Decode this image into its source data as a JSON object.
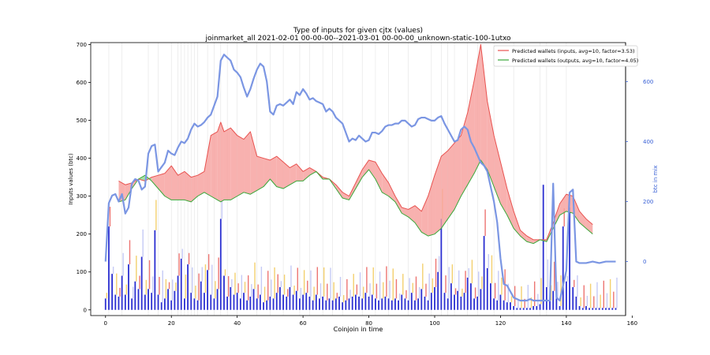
{
  "chart_data": {
    "type": "line",
    "title": "Type of inputs for given cjtx (values)",
    "subtitle": "joinmarket_all 2021-02-01 00-00-00--2021-03-01 00-00-00_unknown-static-100-1utxo",
    "xlabel": "Coinjoin in time",
    "ylabel": "Inputs values (btc)",
    "y2label": "btc in mix",
    "xlim": [
      -4.5,
      158
    ],
    "ylim": [
      -15,
      705
    ],
    "y2lim": [
      -180,
      730
    ],
    "xticks": [
      0,
      20,
      40,
      60,
      80,
      100,
      120,
      140,
      160
    ],
    "yticks": [
      0,
      100,
      200,
      300,
      400,
      500,
      600,
      700
    ],
    "y2ticks": [
      0,
      200,
      400,
      600
    ],
    "legend_position": "top-right",
    "legend": [
      {
        "label": "Predicted wallets (inputs, avg=10, factor=3.53)",
        "color": "#e8524f"
      },
      {
        "label": "Predicted wallets (outputs, avg=10, factor=4.05)",
        "color": "#3aa83a"
      }
    ],
    "series": [
      {
        "name": "Predicted wallets (inputs, avg=10, factor=3.53)",
        "color": "#e8524f",
        "x": [
          4,
          6,
          8,
          10,
          12,
          14,
          16,
          18,
          20,
          22,
          24,
          26,
          28,
          30,
          32,
          34,
          35,
          36,
          38,
          40,
          42,
          44,
          46,
          48,
          50,
          52,
          54,
          56,
          58,
          60,
          62,
          64,
          66,
          68,
          70,
          72,
          74,
          76,
          78,
          80,
          82,
          84,
          86,
          88,
          90,
          92,
          94,
          96,
          98,
          100,
          102,
          104,
          106,
          108,
          110,
          112,
          114,
          116,
          118,
          120,
          122,
          124,
          126,
          128,
          130,
          132,
          134,
          136,
          138,
          140,
          142,
          144,
          146,
          148
        ],
        "values": [
          340,
          330,
          335,
          345,
          340,
          350,
          355,
          360,
          380,
          355,
          365,
          350,
          355,
          365,
          460,
          470,
          495,
          470,
          480,
          460,
          450,
          470,
          405,
          400,
          395,
          405,
          390,
          375,
          385,
          365,
          375,
          365,
          350,
          345,
          330,
          310,
          300,
          335,
          370,
          395,
          390,
          360,
          335,
          300,
          270,
          265,
          275,
          260,
          300,
          355,
          405,
          420,
          440,
          460,
          520,
          605,
          700,
          550,
          460,
          390,
          320,
          260,
          210,
          195,
          185,
          185,
          185,
          230,
          280,
          305,
          300,
          260,
          240,
          225
        ]
      },
      {
        "name": "Predicted wallets (outputs, avg=10, factor=4.05)",
        "color": "#3aa83a",
        "x": [
          4,
          6,
          8,
          10,
          12,
          14,
          16,
          18,
          20,
          22,
          24,
          26,
          28,
          30,
          32,
          34,
          35,
          36,
          38,
          40,
          42,
          44,
          46,
          48,
          50,
          52,
          54,
          56,
          58,
          60,
          62,
          64,
          66,
          68,
          70,
          72,
          74,
          76,
          78,
          80,
          82,
          84,
          86,
          88,
          90,
          92,
          94,
          96,
          98,
          100,
          102,
          104,
          106,
          108,
          110,
          112,
          114,
          116,
          118,
          120,
          122,
          124,
          126,
          128,
          130,
          132,
          134,
          136,
          138,
          140,
          142,
          144,
          146,
          148
        ],
        "values": [
          285,
          290,
          320,
          345,
          355,
          340,
          320,
          300,
          290,
          290,
          290,
          285,
          300,
          310,
          300,
          290,
          285,
          290,
          290,
          300,
          310,
          305,
          315,
          325,
          345,
          325,
          320,
          330,
          340,
          340,
          355,
          365,
          345,
          345,
          320,
          295,
          290,
          320,
          350,
          370,
          345,
          310,
          300,
          285,
          255,
          245,
          230,
          205,
          195,
          200,
          215,
          240,
          265,
          300,
          330,
          360,
          395,
          370,
          325,
          280,
          250,
          215,
          195,
          180,
          175,
          185,
          180,
          215,
          250,
          260,
          255,
          230,
          215,
          200
        ]
      },
      {
        "name": "",
        "axis": "right",
        "color": "#7b96e3",
        "x": [
          0,
          1,
          2,
          3,
          4,
          5,
          6,
          7,
          8,
          9,
          10,
          11,
          12,
          13,
          14,
          15,
          16,
          17,
          18,
          19,
          20,
          21,
          22,
          23,
          24,
          25,
          26,
          27,
          28,
          29,
          30,
          31,
          32,
          33,
          34,
          35,
          36,
          37,
          38,
          39,
          40,
          41,
          42,
          43,
          44,
          45,
          46,
          47,
          48,
          49,
          50,
          51,
          52,
          53,
          54,
          55,
          56,
          57,
          58,
          59,
          60,
          61,
          62,
          63,
          64,
          65,
          66,
          67,
          68,
          69,
          70,
          71,
          72,
          73,
          74,
          75,
          76,
          77,
          78,
          79,
          80,
          81,
          82,
          83,
          84,
          85,
          86,
          87,
          88,
          89,
          90,
          91,
          92,
          93,
          94,
          95,
          96,
          97,
          98,
          99,
          100,
          101,
          102,
          103,
          104,
          105,
          106,
          107,
          108,
          109,
          110,
          111,
          112,
          113,
          114,
          115,
          116,
          117,
          118,
          119,
          120,
          121,
          122,
          123,
          124,
          125,
          126,
          127,
          128,
          129,
          130,
          131,
          132,
          133,
          134,
          135,
          136,
          137,
          138,
          140,
          141,
          142,
          143,
          144,
          145,
          146,
          148,
          150,
          152,
          155
        ],
        "values": [
          0,
          195,
          220,
          225,
          200,
          225,
          160,
          180,
          260,
          275,
          270,
          240,
          250,
          360,
          385,
          390,
          300,
          315,
          330,
          370,
          360,
          355,
          380,
          400,
          395,
          410,
          440,
          460,
          450,
          455,
          465,
          480,
          490,
          520,
          550,
          670,
          690,
          680,
          670,
          640,
          630,
          615,
          580,
          550,
          575,
          610,
          640,
          660,
          650,
          600,
          500,
          490,
          520,
          525,
          520,
          530,
          540,
          525,
          565,
          555,
          575,
          560,
          540,
          545,
          535,
          530,
          525,
          500,
          510,
          500,
          480,
          470,
          460,
          430,
          400,
          410,
          405,
          420,
          410,
          400,
          405,
          430,
          430,
          425,
          435,
          450,
          455,
          455,
          460,
          460,
          470,
          470,
          460,
          450,
          455,
          475,
          480,
          480,
          475,
          470,
          470,
          480,
          485,
          460,
          440,
          420,
          400,
          405,
          440,
          450,
          440,
          400,
          380,
          355,
          330,
          320,
          300,
          250,
          200,
          130,
          10,
          -75,
          -80,
          -100,
          -120,
          -125,
          -130,
          -130,
          -130,
          -125,
          -130,
          -130,
          -130,
          -130,
          -130,
          -130,
          260,
          -120,
          -130,
          -30,
          230,
          240,
          0,
          -5,
          -5,
          -5,
          0,
          -5,
          0,
          0
        ],
        "note_visible": "blue line plotted on right axis"
      }
    ],
    "bars": {
      "x": [
        0,
        1,
        2,
        3,
        4,
        5,
        6,
        7,
        8,
        9,
        10,
        11,
        12,
        13,
        14,
        15,
        16,
        17,
        18,
        19,
        20,
        21,
        22,
        23,
        24,
        25,
        26,
        27,
        28,
        29,
        30,
        31,
        32,
        33,
        34,
        35,
        36,
        37,
        38,
        39,
        40,
        41,
        42,
        43,
        44,
        45,
        46,
        47,
        48,
        49,
        50,
        51,
        52,
        53,
        54,
        55,
        56,
        57,
        58,
        59,
        60,
        61,
        62,
        63,
        64,
        65,
        66,
        67,
        68,
        69,
        70,
        71,
        72,
        73,
        74,
        75,
        76,
        77,
        78,
        79,
        80,
        81,
        82,
        83,
        84,
        85,
        86,
        87,
        88,
        89,
        90,
        91,
        92,
        93,
        94,
        95,
        96,
        97,
        98,
        99,
        100,
        101,
        102,
        103,
        104,
        105,
        106,
        107,
        108,
        109,
        110,
        111,
        112,
        113,
        114,
        115,
        116,
        117,
        118,
        119,
        120,
        121,
        122,
        123,
        124,
        125,
        126,
        127,
        128,
        129,
        130,
        131,
        132,
        133,
        134,
        135,
        136,
        137,
        138,
        139,
        140,
        141,
        142,
        143,
        144,
        145,
        146,
        147,
        148,
        149,
        150,
        151,
        152,
        153,
        154,
        155
      ],
      "values": [
        30,
        220,
        95,
        40,
        35,
        90,
        40,
        120,
        30,
        75,
        55,
        140,
        40,
        55,
        45,
        210,
        40,
        20,
        30,
        55,
        25,
        50,
        90,
        135,
        30,
        120,
        45,
        30,
        25,
        75,
        45,
        105,
        40,
        30,
        55,
        240,
        90,
        35,
        60,
        40,
        45,
        30,
        45,
        25,
        35,
        55,
        30,
        40,
        20,
        25,
        35,
        30,
        45,
        60,
        40,
        35,
        60,
        40,
        50,
        30,
        40,
        45,
        35,
        25,
        40,
        30,
        35,
        25,
        30,
        25,
        30,
        35,
        20,
        25,
        30,
        35,
        40,
        35,
        30,
        45,
        35,
        40,
        30,
        25,
        30,
        35,
        30,
        25,
        30,
        25,
        40,
        30,
        25,
        45,
        25,
        30,
        55,
        35,
        25,
        45,
        60,
        100,
        240,
        45,
        30,
        70,
        40,
        50,
        35,
        45,
        85,
        70,
        30,
        35,
        55,
        195,
        110,
        70,
        30,
        25,
        40,
        25,
        20,
        20,
        10,
        5,
        5,
        5,
        5,
        5,
        10,
        10,
        15,
        330,
        60,
        25,
        50,
        30,
        10,
        220,
        75,
        270,
        60,
        35,
        10,
        5,
        10,
        5,
        5,
        5,
        5,
        5,
        5,
        5,
        5,
        5
      ],
      "color": "#2b2fd1",
      "accent_colors": [
        "#f0c44a",
        "#e8524f",
        "#b6bdf2"
      ]
    }
  }
}
